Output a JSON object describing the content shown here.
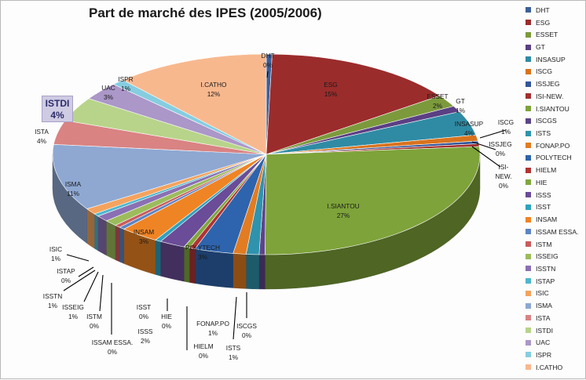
{
  "chart_data": {
    "type": "pie",
    "title": "Part de marché des IPES (2005/2006)",
    "legend_position": "right",
    "slices": [
      {
        "name": "DHT",
        "value": 0,
        "label": "0%",
        "color": "#3c5f9a"
      },
      {
        "name": "ESG",
        "value": 15,
        "label": "15%",
        "color": "#9b2c2c"
      },
      {
        "name": "ESSET",
        "value": 2,
        "label": "2%",
        "color": "#7c9a3c"
      },
      {
        "name": "GT",
        "value": 1,
        "label": "1%",
        "color": "#5b3f84"
      },
      {
        "name": "INSASUP",
        "value": 4,
        "label": "4%",
        "color": "#2f8ba4"
      },
      {
        "name": "ISCG",
        "value": 1,
        "label": "1%",
        "color": "#d9731e"
      },
      {
        "name": "ISSJEG",
        "value": 0,
        "label": "0%",
        "color": "#34569a"
      },
      {
        "name": "ISI-NEW.",
        "value": 0,
        "label": "0%",
        "color": "#a23030"
      },
      {
        "name": "I.SIANTOU",
        "value": 27,
        "label": "27%",
        "color": "#7ea33a"
      },
      {
        "name": "ISCGS",
        "value": 0,
        "label": "0%",
        "color": "#5c4587"
      },
      {
        "name": "ISTS",
        "value": 1,
        "label": "1%",
        "color": "#2f93ad"
      },
      {
        "name": "FONAP.PO",
        "value": 1,
        "label": "1%",
        "color": "#e27c22"
      },
      {
        "name": "POLYTECH",
        "value": 3,
        "label": "3%",
        "color": "#2e64ad"
      },
      {
        "name": "HIELM",
        "value": 0,
        "label": "0%",
        "color": "#b03434"
      },
      {
        "name": "HIE",
        "value": 0,
        "label": "0%",
        "color": "#7fa73e"
      },
      {
        "name": "ISSS",
        "value": 2,
        "label": "2%",
        "color": "#6a4c98"
      },
      {
        "name": "ISST",
        "value": 0,
        "label": "0%",
        "color": "#2fa2bf"
      },
      {
        "name": "INSAM",
        "value": 3,
        "label": "3%",
        "color": "#ef8424"
      },
      {
        "name": "ISSAM ESSA.",
        "value": 0,
        "label": "0%",
        "color": "#5d84c3"
      },
      {
        "name": "ISTM",
        "value": 0,
        "label": "0%",
        "color": "#c95c5c"
      },
      {
        "name": "ISSEIG",
        "value": 1,
        "label": "1%",
        "color": "#9cbc5c"
      },
      {
        "name": "ISSTN",
        "value": 1,
        "label": "1%",
        "color": "#8a70b3"
      },
      {
        "name": "ISTAP",
        "value": 0,
        "label": "0%",
        "color": "#4fb6cf"
      },
      {
        "name": "ISIC",
        "value": 1,
        "label": "1%",
        "color": "#f4a35e"
      },
      {
        "name": "ISMA",
        "value": 11,
        "label": "11%",
        "color": "#8ea8d2"
      },
      {
        "name": "ISTA",
        "value": 4,
        "label": "4%",
        "color": "#d98383"
      },
      {
        "name": "ISTDI",
        "value": 4,
        "label": "4%",
        "color": "#b8d48a"
      },
      {
        "name": "UAC",
        "value": 3,
        "label": "3%",
        "color": "#ab97c8"
      },
      {
        "name": "ISPR",
        "value": 1,
        "label": "1%",
        "color": "#86cde0"
      },
      {
        "name": "I.CATHO",
        "value": 12,
        "label": "12%",
        "color": "#f8b88e"
      }
    ]
  }
}
